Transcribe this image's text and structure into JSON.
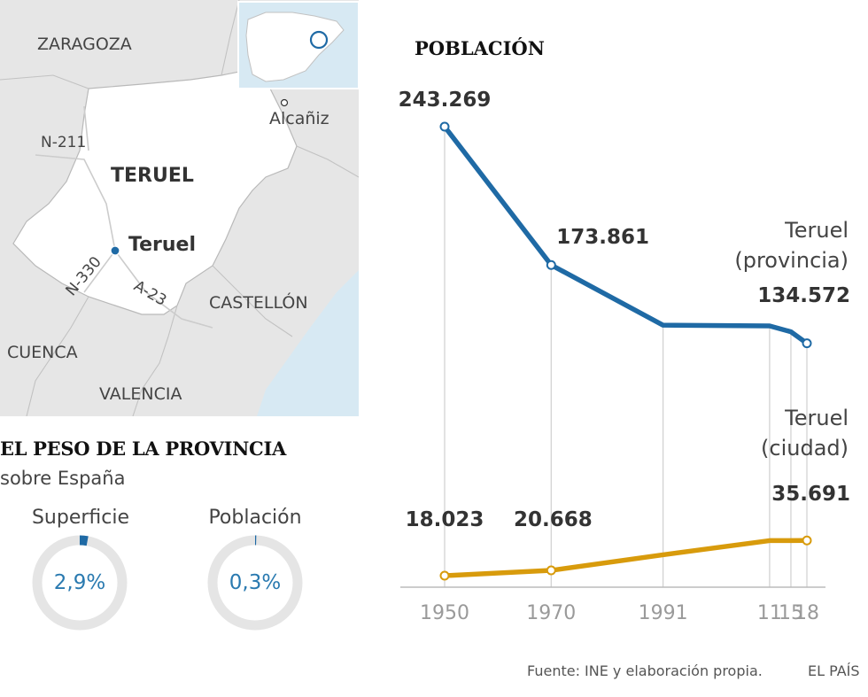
{
  "map": {
    "labels": {
      "zaragoza": "ZARAGOZA",
      "teruel_province": "TERUEL",
      "teruel_city": "Teruel",
      "alcaniz": "Alcañiz",
      "castellon": "CASTELLÓN",
      "cuenca": "CUENCA",
      "valencia": "VALENCIA",
      "n211": "N-211",
      "n330": "N-330",
      "a23": "A-23"
    },
    "colors": {
      "province_fill": "#ffffff",
      "land": "#e6e6e6",
      "sea": "#d7e9f3",
      "border": "#b9b9b9",
      "marker": "#1f6aa5"
    }
  },
  "peso": {
    "title": "EL PESO DE LA PROVINCIA",
    "subtitle": "sobre España",
    "superficie": {
      "label": "Superficie",
      "value_text": "2,9%",
      "fraction": 0.029
    },
    "poblacion": {
      "label": "Población",
      "value_text": "0,3%",
      "fraction": 0.003
    },
    "colors": {
      "ring": "#e5e5e5",
      "fill": "#1f6aa5",
      "text": "#2a7ab0"
    }
  },
  "chart_data": {
    "type": "line",
    "title": "POBLACIÓN",
    "x": [
      1950,
      1970,
      1991,
      2011,
      2015,
      2018
    ],
    "x_tick_labels": [
      "1950",
      "1970",
      "1991",
      "11",
      "15",
      "18"
    ],
    "ylim": [
      0,
      250000
    ],
    "grid": "vertical-at-ticks",
    "series": [
      {
        "name": "Teruel (provincia)",
        "name_lines": [
          "Teruel",
          "(provincia)"
        ],
        "color": "#1f6aa5",
        "values": [
          243269,
          173861,
          143680,
          143300,
          140365,
          134572
        ],
        "labels": [
          {
            "index": 0,
            "text": "243.269"
          },
          {
            "index": 1,
            "text": "173.861"
          },
          {
            "index": 5,
            "text": "134.572"
          }
        ],
        "marked_points": [
          0,
          1,
          5
        ]
      },
      {
        "name": "Teruel (ciudad)",
        "name_lines": [
          "Teruel",
          "(ciudad)"
        ],
        "color": "#d89b0c",
        "values": [
          18023,
          20668,
          28500,
          35600,
          35600,
          35691
        ],
        "labels": [
          {
            "index": 0,
            "text": "18.023"
          },
          {
            "index": 1,
            "text": "20.668"
          },
          {
            "index": 5,
            "text": "35.691"
          }
        ],
        "marked_points": [
          0,
          1,
          5
        ]
      }
    ]
  },
  "footer": {
    "source": "Fuente: INE y elaboración propia.",
    "brand": "EL PAÍS"
  }
}
